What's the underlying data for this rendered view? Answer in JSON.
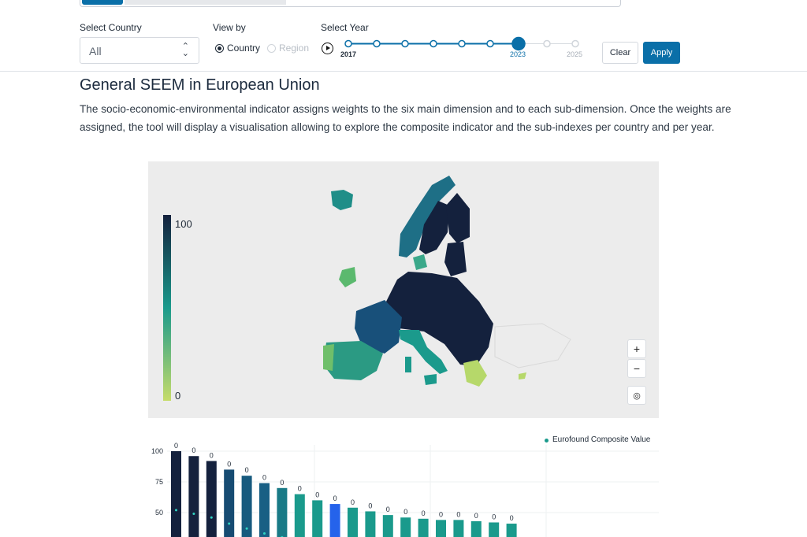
{
  "filters": {
    "country_label": "Select Country",
    "country_value": "All",
    "view_label": "View by",
    "view_options": [
      "Country",
      "Region"
    ],
    "view_selected": "Country",
    "year_label": "Select Year",
    "years": [
      "2017",
      "2018",
      "2019",
      "2020",
      "2021",
      "2022",
      "2023",
      "2024",
      "2025"
    ],
    "year_selected": "2023",
    "year_start_label": "2017",
    "year_end_label": "2025",
    "clear_label": "Clear",
    "apply_label": "Apply"
  },
  "main": {
    "title": "General SEEM in European Union",
    "description": "The socio-economic-environmental indicator assigns weights to the six main dimension and to each sub-dimension. Once the weights are assigned, the tool will display a visualisation allowing to explore the composite indicator and the sub-indexes per country and per year."
  },
  "map": {
    "scale_max": "100",
    "scale_min": "0",
    "zoom_in": "+",
    "zoom_out": "−",
    "colors": {
      "low": "#c6dc6a",
      "mid": "#1b9a8b",
      "high": "#14213d"
    }
  },
  "chart_data": {
    "type": "bar",
    "yticks": [
      "100",
      "75",
      "50"
    ],
    "ylim": [
      0,
      100
    ],
    "legend": "Eurofound Composite Value",
    "bar_label": "0",
    "values": [
      100,
      96,
      92,
      85,
      80,
      74,
      70,
      65,
      60,
      57,
      54,
      51,
      48,
      46,
      45,
      44,
      44,
      43,
      42,
      41
    ],
    "points": [
      52,
      49,
      46,
      41,
      37,
      33,
      30,
      null,
      null,
      null,
      null,
      null,
      null,
      null,
      null,
      null,
      null,
      null,
      null,
      null
    ],
    "colors": [
      "#14213d",
      "#14213d",
      "#14213d",
      "#164b72",
      "#175a7e",
      "#185f84",
      "#197a86",
      "#1a9a8c",
      "#1a9a8c",
      "#2563eb",
      "#1a9a8c",
      "#1a9a8c",
      "#1a9a8c",
      "#1a9a8c",
      "#1a9a8c",
      "#1a9a8c",
      "#1a9a8c",
      "#1a9a8c",
      "#1a9a8c",
      "#1a9a8c"
    ]
  }
}
